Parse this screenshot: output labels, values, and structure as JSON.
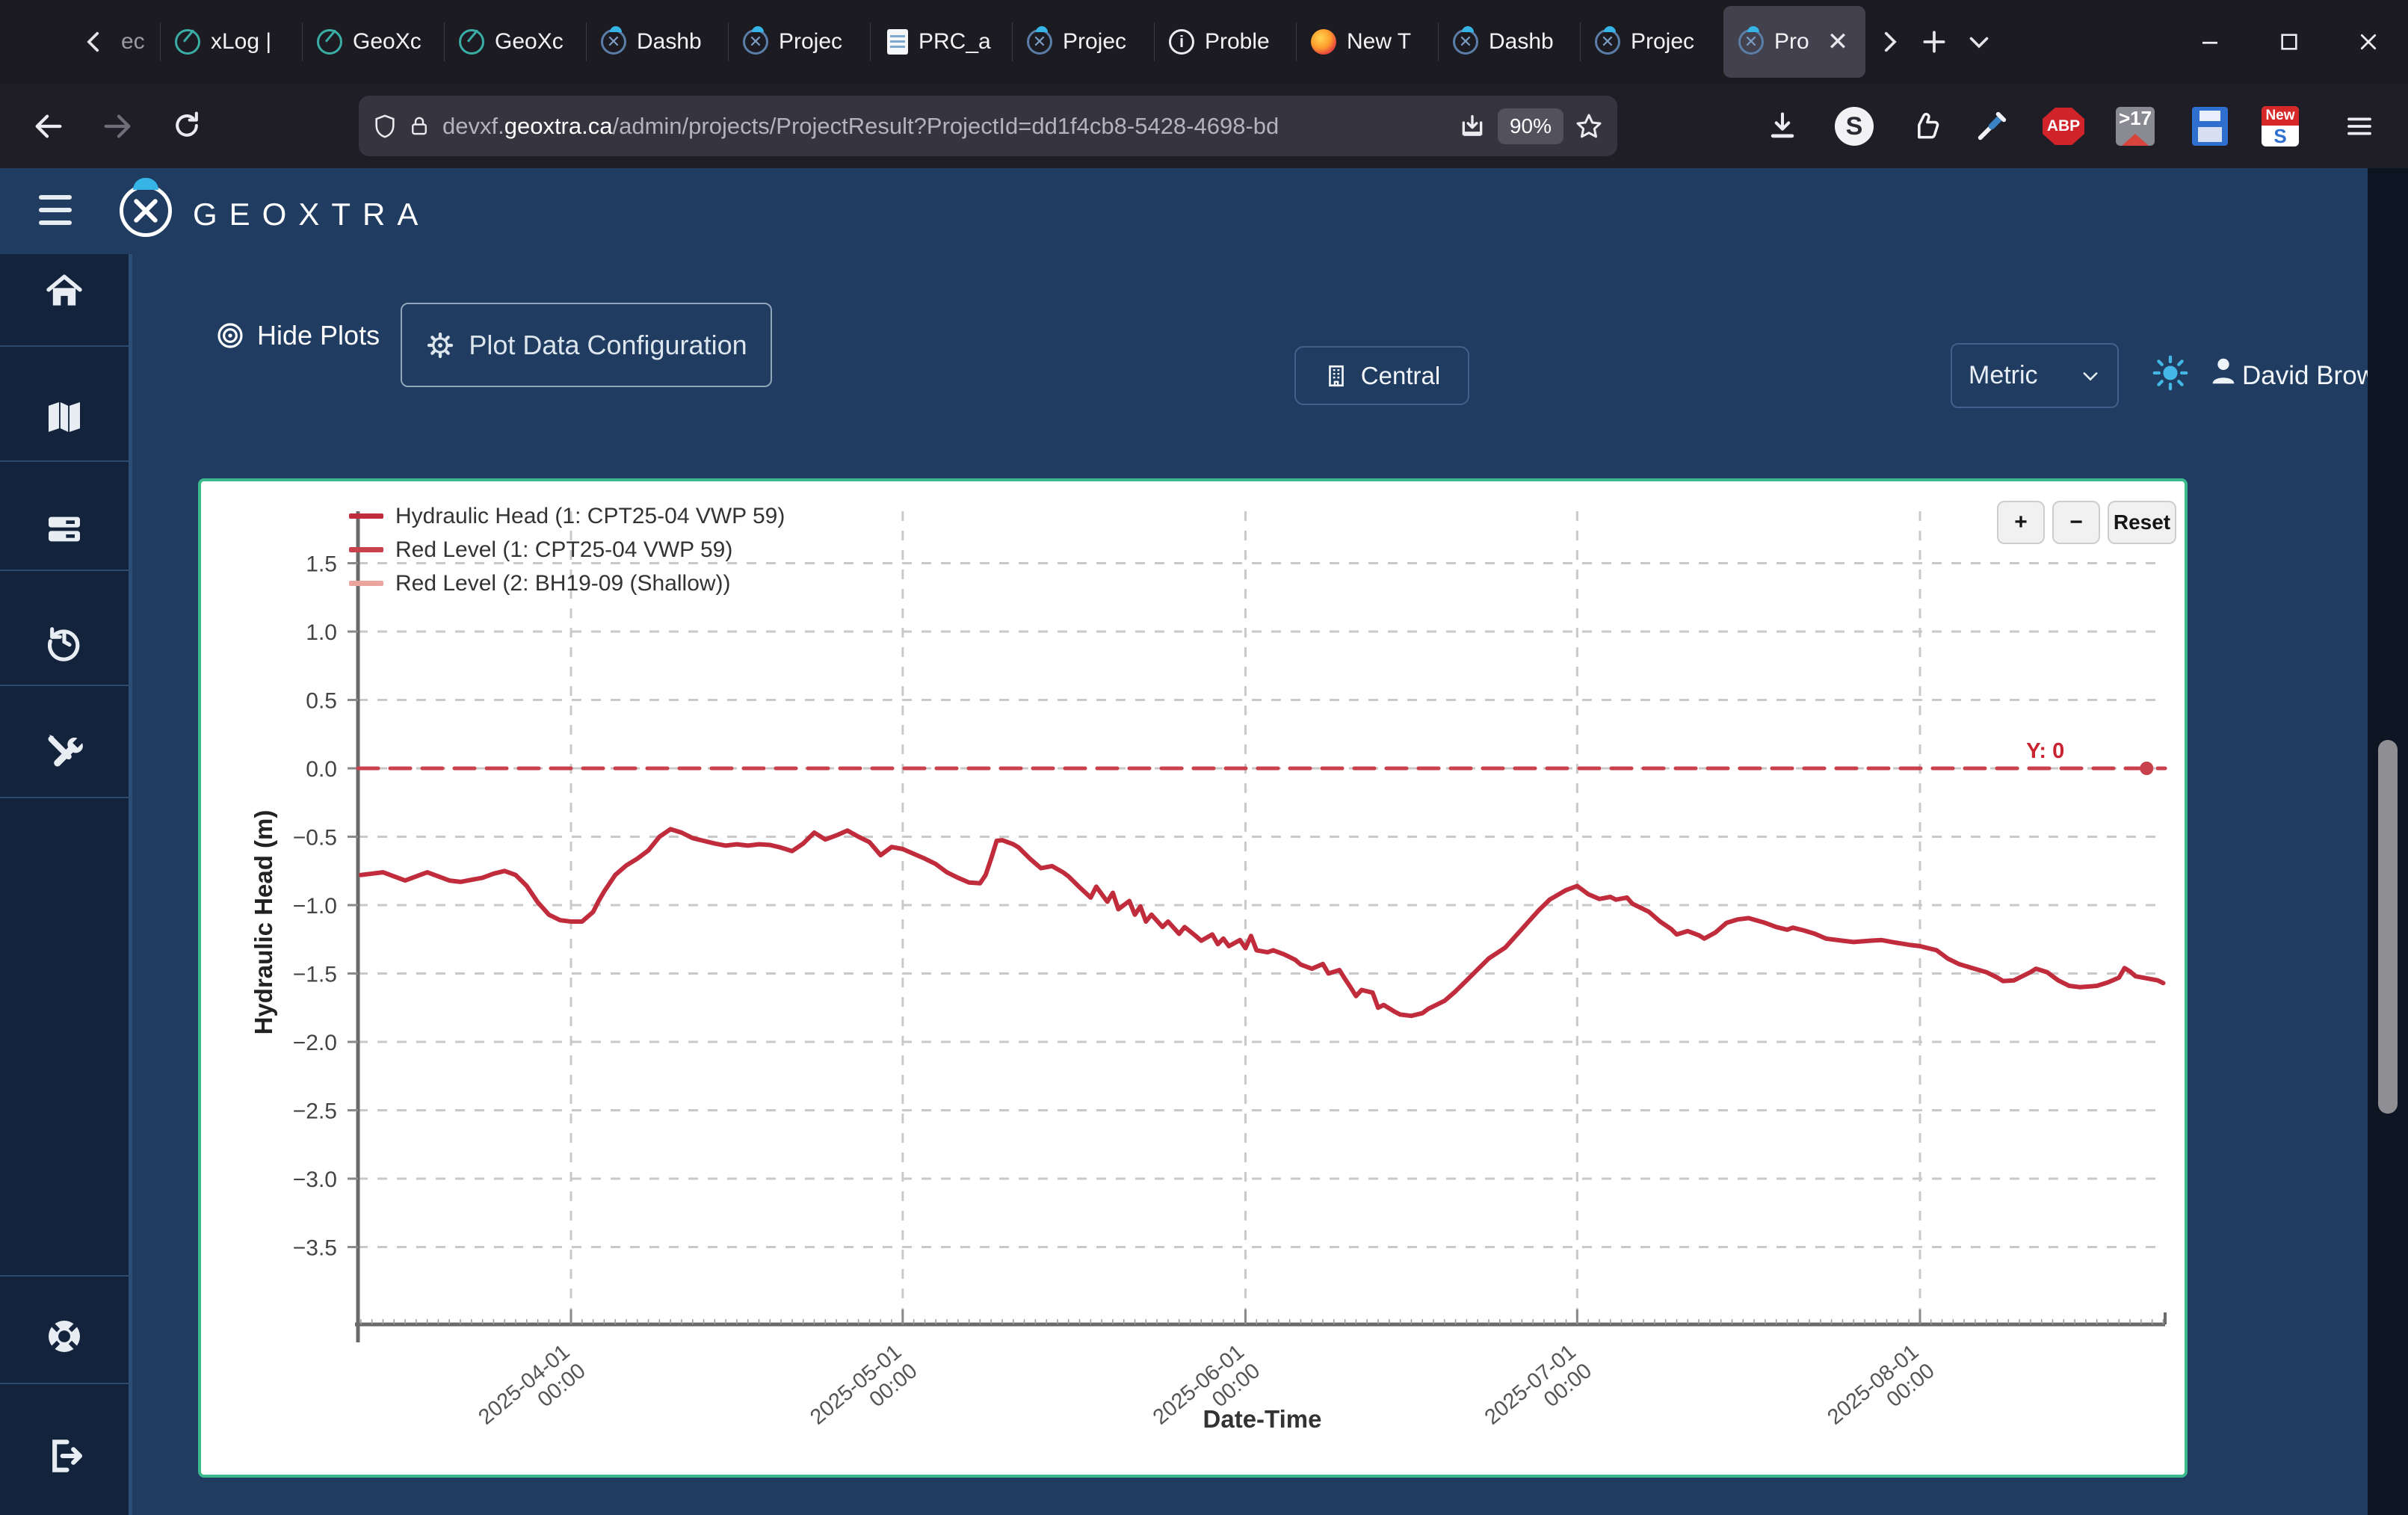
{
  "browser": {
    "tabs": [
      {
        "label": "ec",
        "icon": "none",
        "partial": true,
        "active": false
      },
      {
        "label": "xLog |",
        "icon": "teal-ring",
        "active": false
      },
      {
        "label": "GeoXc",
        "icon": "teal-ring",
        "active": false
      },
      {
        "label": "GeoXc",
        "icon": "teal-ring",
        "active": false
      },
      {
        "label": "Dashb",
        "icon": "navy-x",
        "active": false
      },
      {
        "label": "Projec",
        "icon": "navy-x",
        "active": false
      },
      {
        "label": "PRC_a",
        "icon": "doc",
        "active": false
      },
      {
        "label": "Projec",
        "icon": "navy-x",
        "active": false
      },
      {
        "label": "Proble",
        "icon": "info",
        "active": false
      },
      {
        "label": "New T",
        "icon": "firefox",
        "active": false
      },
      {
        "label": "Dashb",
        "icon": "navy-x",
        "active": false
      },
      {
        "label": "Projec",
        "icon": "navy-x",
        "active": false
      },
      {
        "label": "Pro",
        "icon": "navy-x",
        "active": true
      }
    ],
    "url_prefix": "devxf.",
    "url_domain": "geoxtra.ca",
    "url_path": "/admin/projects/ProjectResult?ProjectId=dd1f4cb8-5428-4698-bd",
    "zoom_badge": "90%",
    "ext_badges": {
      "s_letter": "S",
      "abp": "ABP",
      "tab_count": ">17",
      "new_badge": "New",
      "new_letter": "S"
    }
  },
  "app_header": {
    "brand": "GEOXTRA",
    "central_label": "Central",
    "units_value": "Metric",
    "user_name": "David Brown"
  },
  "sidebar": {
    "items": [
      {
        "icon": "home"
      },
      {
        "icon": "map"
      },
      {
        "icon": "layers"
      },
      {
        "icon": "history"
      },
      {
        "icon": "tools"
      }
    ],
    "bottom_items": [
      {
        "icon": "life-ring"
      },
      {
        "icon": "logout"
      }
    ]
  },
  "toolbar": {
    "hide_plots_label": "Hide Plots",
    "plot_config_label": "Plot Data Configuration"
  },
  "chart": {
    "border_color": "#3cb98c",
    "legend": [
      {
        "label": "Hydraulic Head (1: CPT25-04 VWP 59)",
        "color": "#c02c3c"
      },
      {
        "label": "Red Level (1: CPT25-04 VWP 59)",
        "color": "#c8414d"
      },
      {
        "label": "Red Level (2: BH19-09 (Shallow))",
        "color": "#eba59e"
      }
    ],
    "controls": {
      "plus": "+",
      "minus": "−",
      "reset": "Reset"
    },
    "annotation_label": "Y: 0"
  },
  "chart_data": {
    "type": "line",
    "xlabel": "Date-Time",
    "ylabel": "Hydraulic Head (m)",
    "xlim": [
      "2025-03-13",
      "2025-08-23"
    ],
    "ylim": [
      -4.05,
      1.85
    ],
    "grid": true,
    "legend_position": "top-left",
    "x_tick_labels": [
      "2025-04-01 00:00",
      "2025-05-01 00:00",
      "2025-06-01 00:00",
      "2025-07-01 00:00",
      "2025-08-01 00:00"
    ],
    "y_tick_labels": [
      "1.5",
      "1.0",
      "0.5",
      "0.0",
      "−0.5",
      "−1.0",
      "−1.5",
      "−2.0",
      "−2.5",
      "−3.0",
      "−3.5"
    ],
    "y_tick_values": [
      1.5,
      1.0,
      0.5,
      0.0,
      -0.5,
      -1.0,
      -1.5,
      -2.0,
      -2.5,
      -3.0,
      -3.5
    ],
    "annotation": {
      "label": "Y: 0",
      "x": "2025-08-21T12:00",
      "y": 0
    },
    "series": [
      {
        "name": "Hydraulic Head (1: CPT25-04 VWP 59)",
        "color": "#c02c3c",
        "style": "solid",
        "points": [
          [
            "2025-03-13",
            -0.78
          ],
          [
            "2025-03-15",
            -0.76
          ],
          [
            "2025-03-16",
            -0.79
          ],
          [
            "2025-03-17",
            -0.82
          ],
          [
            "2025-03-18",
            -0.79
          ],
          [
            "2025-03-19",
            -0.76
          ],
          [
            "2025-03-20",
            -0.79
          ],
          [
            "2025-03-21",
            -0.82
          ],
          [
            "2025-03-22",
            -0.83
          ],
          [
            "2025-03-24",
            -0.8
          ],
          [
            "2025-03-25",
            -0.77
          ],
          [
            "2025-03-26",
            -0.75
          ],
          [
            "2025-03-27",
            -0.78
          ],
          [
            "2025-03-28",
            -0.86
          ],
          [
            "2025-03-29",
            -0.98
          ],
          [
            "2025-03-30",
            -1.07
          ],
          [
            "2025-03-31",
            -1.11
          ],
          [
            "2025-04-01",
            -1.12
          ],
          [
            "2025-04-02",
            -1.12
          ],
          [
            "2025-04-03",
            -1.05
          ],
          [
            "2025-04-03T12:00",
            -0.97
          ],
          [
            "2025-04-04",
            -0.9
          ],
          [
            "2025-04-05",
            -0.78
          ],
          [
            "2025-04-06",
            -0.71
          ],
          [
            "2025-04-07",
            -0.66
          ],
          [
            "2025-04-08",
            -0.6
          ],
          [
            "2025-04-09",
            -0.5
          ],
          [
            "2025-04-10",
            -0.445
          ],
          [
            "2025-04-11",
            -0.47
          ],
          [
            "2025-04-12",
            -0.51
          ],
          [
            "2025-04-13",
            -0.53
          ],
          [
            "2025-04-14",
            -0.55
          ],
          [
            "2025-04-15",
            -0.565
          ],
          [
            "2025-04-16",
            -0.555
          ],
          [
            "2025-04-17",
            -0.565
          ],
          [
            "2025-04-18",
            -0.555
          ],
          [
            "2025-04-19",
            -0.56
          ],
          [
            "2025-04-20",
            -0.58
          ],
          [
            "2025-04-21",
            -0.605
          ],
          [
            "2025-04-22",
            -0.55
          ],
          [
            "2025-04-23",
            -0.47
          ],
          [
            "2025-04-24",
            -0.52
          ],
          [
            "2025-04-25",
            -0.49
          ],
          [
            "2025-04-26",
            -0.455
          ],
          [
            "2025-04-27",
            -0.5
          ],
          [
            "2025-04-28",
            -0.54
          ],
          [
            "2025-04-29",
            -0.635
          ],
          [
            "2025-04-30",
            -0.575
          ],
          [
            "2025-05-01",
            -0.59
          ],
          [
            "2025-05-02",
            -0.625
          ],
          [
            "2025-05-03",
            -0.66
          ],
          [
            "2025-05-04",
            -0.7
          ],
          [
            "2025-05-05",
            -0.76
          ],
          [
            "2025-05-06",
            -0.8
          ],
          [
            "2025-05-07",
            -0.835
          ],
          [
            "2025-05-08",
            -0.84
          ],
          [
            "2025-05-08T12:00",
            -0.78
          ],
          [
            "2025-05-09",
            -0.66
          ],
          [
            "2025-05-09T12:00",
            -0.53
          ],
          [
            "2025-05-10",
            -0.525
          ],
          [
            "2025-05-11",
            -0.555
          ],
          [
            "2025-05-11T12:00",
            -0.58
          ],
          [
            "2025-05-12T12:00",
            -0.66
          ],
          [
            "2025-05-13T12:00",
            -0.73
          ],
          [
            "2025-05-14T12:00",
            -0.715
          ],
          [
            "2025-05-15T12:00",
            -0.76
          ],
          [
            "2025-05-16",
            -0.79
          ],
          [
            "2025-05-17",
            -0.87
          ],
          [
            "2025-05-18",
            -0.945
          ],
          [
            "2025-05-18T12:00",
            -0.865
          ],
          [
            "2025-05-19T12:00",
            -0.975
          ],
          [
            "2025-05-20",
            -0.91
          ],
          [
            "2025-05-20T12:00",
            -1.03
          ],
          [
            "2025-05-21T12:00",
            -0.97
          ],
          [
            "2025-05-22",
            -1.07
          ],
          [
            "2025-05-22T12:00",
            -1.01
          ],
          [
            "2025-05-23",
            -1.12
          ],
          [
            "2025-05-23T12:00",
            -1.07
          ],
          [
            "2025-05-24T12:00",
            -1.16
          ],
          [
            "2025-05-25",
            -1.12
          ],
          [
            "2025-05-26",
            -1.21
          ],
          [
            "2025-05-26T12:00",
            -1.16
          ],
          [
            "2025-05-27T12:00",
            -1.225
          ],
          [
            "2025-05-28",
            -1.26
          ],
          [
            "2025-05-29",
            -1.215
          ],
          [
            "2025-05-29T12:00",
            -1.285
          ],
          [
            "2025-05-30",
            -1.245
          ],
          [
            "2025-05-30T12:00",
            -1.3
          ],
          [
            "2025-05-31T12:00",
            -1.255
          ],
          [
            "2025-06-01",
            -1.315
          ],
          [
            "2025-06-01T12:00",
            -1.225
          ],
          [
            "2025-06-02",
            -1.33
          ],
          [
            "2025-06-03",
            -1.345
          ],
          [
            "2025-06-03T12:00",
            -1.33
          ],
          [
            "2025-06-04T12:00",
            -1.36
          ],
          [
            "2025-06-05T12:00",
            -1.4
          ],
          [
            "2025-06-06",
            -1.435
          ],
          [
            "2025-06-07",
            -1.465
          ],
          [
            "2025-06-08",
            -1.43
          ],
          [
            "2025-06-08T12:00",
            -1.5
          ],
          [
            "2025-06-09T12:00",
            -1.475
          ],
          [
            "2025-06-10",
            -1.54
          ],
          [
            "2025-06-10T12:00",
            -1.6
          ],
          [
            "2025-06-11",
            -1.665
          ],
          [
            "2025-06-11T12:00",
            -1.62
          ],
          [
            "2025-06-12T12:00",
            -1.64
          ],
          [
            "2025-06-13",
            -1.75
          ],
          [
            "2025-06-13T12:00",
            -1.73
          ],
          [
            "2025-06-14T12:00",
            -1.78
          ],
          [
            "2025-06-15",
            -1.8
          ],
          [
            "2025-06-16",
            -1.81
          ],
          [
            "2025-06-17",
            -1.79
          ],
          [
            "2025-06-17T12:00",
            -1.76
          ],
          [
            "2025-06-19",
            -1.7
          ],
          [
            "2025-06-20",
            -1.63
          ],
          [
            "2025-06-21",
            -1.55
          ],
          [
            "2025-06-22",
            -1.47
          ],
          [
            "2025-06-23",
            -1.39
          ],
          [
            "2025-06-24T12:00",
            -1.31
          ],
          [
            "2025-06-25T12:00",
            -1.22
          ],
          [
            "2025-06-26T12:00",
            -1.13
          ],
          [
            "2025-06-27T12:00",
            -1.04
          ],
          [
            "2025-06-28T12:00",
            -0.96
          ],
          [
            "2025-06-30",
            -0.89
          ],
          [
            "2025-07-01",
            -0.86
          ],
          [
            "2025-07-02",
            -0.92
          ],
          [
            "2025-07-03",
            -0.955
          ],
          [
            "2025-07-04",
            -0.94
          ],
          [
            "2025-07-04T12:00",
            -0.96
          ],
          [
            "2025-07-05T12:00",
            -0.945
          ],
          [
            "2025-07-06",
            -0.99
          ],
          [
            "2025-07-07T12:00",
            -1.05
          ],
          [
            "2025-07-08T12:00",
            -1.12
          ],
          [
            "2025-07-09T12:00",
            -1.175
          ],
          [
            "2025-07-10",
            -1.215
          ],
          [
            "2025-07-11",
            -1.19
          ],
          [
            "2025-07-12",
            -1.22
          ],
          [
            "2025-07-12T12:00",
            -1.245
          ],
          [
            "2025-07-13T12:00",
            -1.2
          ],
          [
            "2025-07-14T12:00",
            -1.13
          ],
          [
            "2025-07-15T12:00",
            -1.105
          ],
          [
            "2025-07-16T12:00",
            -1.095
          ],
          [
            "2025-07-18",
            -1.13
          ],
          [
            "2025-07-19",
            -1.16
          ],
          [
            "2025-07-20",
            -1.18
          ],
          [
            "2025-07-20T12:00",
            -1.165
          ],
          [
            "2025-07-21T12:00",
            -1.185
          ],
          [
            "2025-07-22T12:00",
            -1.21
          ],
          [
            "2025-07-23T12:00",
            -1.245
          ],
          [
            "2025-07-25",
            -1.26
          ],
          [
            "2025-07-26",
            -1.27
          ],
          [
            "2025-07-27T12:00",
            -1.26
          ],
          [
            "2025-07-28T12:00",
            -1.255
          ],
          [
            "2025-07-29T12:00",
            -1.27
          ],
          [
            "2025-07-31",
            -1.29
          ],
          [
            "2025-08-01",
            -1.3
          ],
          [
            "2025-08-02T12:00",
            -1.33
          ],
          [
            "2025-08-03T12:00",
            -1.39
          ],
          [
            "2025-08-04T12:00",
            -1.43
          ],
          [
            "2025-08-05T12:00",
            -1.455
          ],
          [
            "2025-08-07",
            -1.49
          ],
          [
            "2025-08-08",
            -1.53
          ],
          [
            "2025-08-08T12:00",
            -1.555
          ],
          [
            "2025-08-09T12:00",
            -1.55
          ],
          [
            "2025-08-11",
            -1.49
          ],
          [
            "2025-08-11T12:00",
            -1.465
          ],
          [
            "2025-08-12T12:00",
            -1.49
          ],
          [
            "2025-08-13T12:00",
            -1.55
          ],
          [
            "2025-08-14T12:00",
            -1.59
          ],
          [
            "2025-08-15T12:00",
            -1.6
          ],
          [
            "2025-08-17",
            -1.59
          ],
          [
            "2025-08-18",
            -1.565
          ],
          [
            "2025-08-19",
            -1.53
          ],
          [
            "2025-08-19T12:00",
            -1.46
          ],
          [
            "2025-08-20",
            -1.485
          ],
          [
            "2025-08-20T12:00",
            -1.52
          ],
          [
            "2025-08-21T12:00",
            -1.535
          ],
          [
            "2025-08-22T12:00",
            -1.55
          ],
          [
            "2025-08-23",
            -1.57
          ]
        ]
      },
      {
        "name": "Red Level (2: BH19-09 (Shallow))",
        "color": "#eba59e",
        "style": "dashed",
        "points": [
          [
            "2025-03-13",
            0
          ],
          [
            "2025-08-23",
            0
          ]
        ]
      },
      {
        "name": "Red Level (1: CPT25-04 VWP 59)",
        "color": "#c8414d",
        "style": "dashed",
        "points": [
          [
            "2025-03-13",
            0
          ],
          [
            "2025-08-23",
            0
          ]
        ]
      }
    ]
  }
}
